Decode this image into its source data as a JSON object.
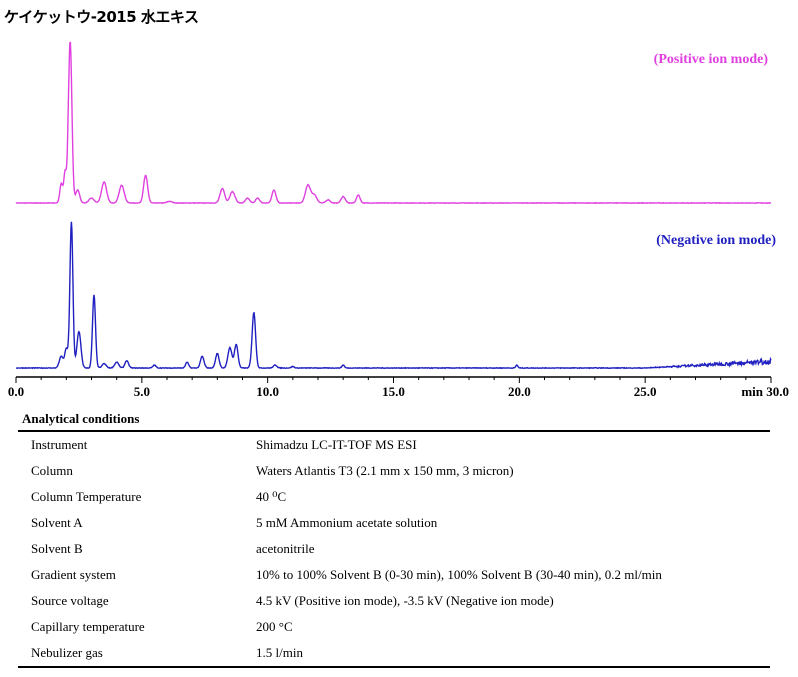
{
  "title": "ケイケットウ-2015 水エキス",
  "chart_data": [
    {
      "type": "line",
      "label": "(Positive ion mode)",
      "color": "#e040e0",
      "xlim": [
        0,
        30
      ],
      "peaks": [
        [
          1.8,
          0.12,
          0.06
        ],
        [
          1.95,
          0.18,
          0.05
        ],
        [
          2.15,
          1.0,
          0.07
        ],
        [
          2.45,
          0.08,
          0.08
        ],
        [
          3.0,
          0.03,
          0.1
        ],
        [
          3.5,
          0.13,
          0.1
        ],
        [
          4.2,
          0.11,
          0.1
        ],
        [
          5.15,
          0.17,
          0.08
        ],
        [
          6.1,
          0.01,
          0.1
        ],
        [
          8.2,
          0.09,
          0.09
        ],
        [
          8.6,
          0.07,
          0.1
        ],
        [
          9.2,
          0.03,
          0.08
        ],
        [
          9.6,
          0.03,
          0.08
        ],
        [
          10.25,
          0.08,
          0.08
        ],
        [
          11.6,
          0.11,
          0.1
        ],
        [
          11.85,
          0.05,
          0.1
        ],
        [
          12.4,
          0.02,
          0.08
        ],
        [
          13.0,
          0.04,
          0.08
        ],
        [
          13.6,
          0.05,
          0.07
        ]
      ],
      "noise": 0.003,
      "drift": 0.0
    },
    {
      "type": "line",
      "label": "(Negative ion mode)",
      "color": "#2020c0",
      "xlim": [
        0,
        30
      ],
      "peaks": [
        [
          1.8,
          0.08,
          0.08
        ],
        [
          2.0,
          0.13,
          0.06
        ],
        [
          2.2,
          1.0,
          0.06
        ],
        [
          2.5,
          0.25,
          0.08
        ],
        [
          3.1,
          0.5,
          0.06
        ],
        [
          3.5,
          0.03,
          0.08
        ],
        [
          4.0,
          0.04,
          0.08
        ],
        [
          4.4,
          0.05,
          0.07
        ],
        [
          5.5,
          0.02,
          0.06
        ],
        [
          6.8,
          0.04,
          0.06
        ],
        [
          7.4,
          0.08,
          0.07
        ],
        [
          8.0,
          0.1,
          0.07
        ],
        [
          8.5,
          0.14,
          0.08
        ],
        [
          8.75,
          0.16,
          0.07
        ],
        [
          9.45,
          0.38,
          0.07
        ],
        [
          10.3,
          0.02,
          0.07
        ],
        [
          11.0,
          0.01,
          0.06
        ],
        [
          13.0,
          0.02,
          0.05
        ],
        [
          19.9,
          0.02,
          0.04
        ]
      ],
      "noise": 0.004,
      "drift": 0.045
    }
  ],
  "x_axis": {
    "ticks": [
      "0.0",
      "5.0",
      "10.0",
      "15.0",
      "20.0",
      "25.0",
      "30.0"
    ],
    "unit": "min"
  },
  "conditions": {
    "heading": "Analytical conditions",
    "rows": [
      [
        "Instrument",
        "Shimadzu LC-IT-TOF MS ESI"
      ],
      [
        "Column",
        "Waters Atlantis T3 (2.1 mm x 150 mm, 3 micron)"
      ],
      [
        "Column Temperature",
        "40 ⁰C"
      ],
      [
        "Solvent A",
        "5 mM Ammonium acetate solution"
      ],
      [
        "Solvent B",
        "acetonitrile"
      ],
      [
        "Gradient system",
        "10% to 100% Solvent B (0-30 min), 100% Solvent B (30-40 min), 0.2 ml/min"
      ],
      [
        "Source voltage",
        "4.5 kV (Positive ion mode), -3.5 kV (Negative ion mode)"
      ],
      [
        "Capillary temperature",
        "200 °C"
      ],
      [
        "Nebulizer gas",
        "1.5 l/min"
      ]
    ]
  }
}
